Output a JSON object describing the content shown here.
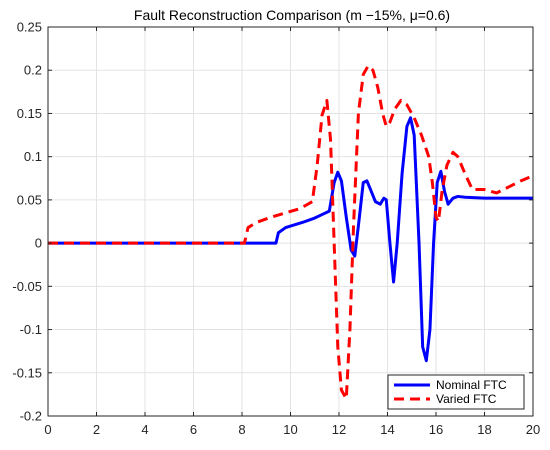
{
  "chart_data": {
    "type": "line",
    "title": "Fault Reconstruction Comparison (m −15%, μ=0.6)",
    "xlabel": "",
    "ylabel": "",
    "xlim": [
      0,
      20
    ],
    "ylim": [
      -0.2,
      0.25
    ],
    "xticks": [
      0,
      2,
      4,
      6,
      8,
      10,
      12,
      14,
      16,
      18,
      20
    ],
    "yticks": [
      -0.2,
      -0.15,
      -0.1,
      -0.05,
      0,
      0.05,
      0.1,
      0.15,
      0.2,
      0.25
    ],
    "xtick_labels": [
      "0",
      "2",
      "4",
      "6",
      "8",
      "10",
      "12",
      "14",
      "16",
      "18",
      "20"
    ],
    "ytick_labels": [
      "-0.2",
      "-0.15",
      "-0.1",
      "-0.05",
      "0",
      "0.05",
      "0.1",
      "0.15",
      "0.2",
      "0.25"
    ],
    "grid": true,
    "legend_position": "bottom-right",
    "series": [
      {
        "name": "Nominal FTC",
        "color": "#0000ff",
        "style": "solid",
        "points": [
          [
            0,
            0
          ],
          [
            9.4,
            0
          ],
          [
            9.5,
            0.012
          ],
          [
            9.8,
            0.018
          ],
          [
            10.5,
            0.024
          ],
          [
            11.0,
            0.029
          ],
          [
            11.3,
            0.033
          ],
          [
            11.6,
            0.037
          ],
          [
            11.8,
            0.07
          ],
          [
            11.95,
            0.082
          ],
          [
            12.1,
            0.072
          ],
          [
            12.3,
            0.03
          ],
          [
            12.5,
            -0.008
          ],
          [
            12.65,
            -0.015
          ],
          [
            12.8,
            0.02
          ],
          [
            13.0,
            0.07
          ],
          [
            13.15,
            0.072
          ],
          [
            13.3,
            0.062
          ],
          [
            13.5,
            0.048
          ],
          [
            13.7,
            0.045
          ],
          [
            13.85,
            0.052
          ],
          [
            13.95,
            0.05
          ],
          [
            14.1,
            0.0
          ],
          [
            14.25,
            -0.045
          ],
          [
            14.4,
            0.0
          ],
          [
            14.6,
            0.08
          ],
          [
            14.8,
            0.135
          ],
          [
            14.95,
            0.145
          ],
          [
            15.1,
            0.125
          ],
          [
            15.3,
            0.0
          ],
          [
            15.45,
            -0.12
          ],
          [
            15.6,
            -0.136
          ],
          [
            15.75,
            -0.1
          ],
          [
            15.9,
            0.0
          ],
          [
            16.05,
            0.07
          ],
          [
            16.2,
            0.083
          ],
          [
            16.35,
            0.06
          ],
          [
            16.5,
            0.045
          ],
          [
            16.7,
            0.052
          ],
          [
            16.9,
            0.054
          ],
          [
            17.2,
            0.053
          ],
          [
            18,
            0.052
          ],
          [
            20,
            0.052
          ]
        ]
      },
      {
        "name": "Varied FTC",
        "color": "#ff0000",
        "style": "dashed",
        "points": [
          [
            0,
            0
          ],
          [
            8.1,
            0
          ],
          [
            8.25,
            0.018
          ],
          [
            8.6,
            0.024
          ],
          [
            9.2,
            0.03
          ],
          [
            9.8,
            0.035
          ],
          [
            10.4,
            0.04
          ],
          [
            10.9,
            0.048
          ],
          [
            11.1,
            0.09
          ],
          [
            11.3,
            0.148
          ],
          [
            11.5,
            0.165
          ],
          [
            11.65,
            0.12
          ],
          [
            11.8,
            0.0
          ],
          [
            11.95,
            -0.12
          ],
          [
            12.1,
            -0.17
          ],
          [
            12.3,
            -0.18
          ],
          [
            12.45,
            -0.1
          ],
          [
            12.6,
            0.02
          ],
          [
            12.8,
            0.15
          ],
          [
            13.0,
            0.195
          ],
          [
            13.2,
            0.205
          ],
          [
            13.4,
            0.2
          ],
          [
            13.6,
            0.18
          ],
          [
            13.8,
            0.15
          ],
          [
            13.95,
            0.135
          ],
          [
            14.1,
            0.14
          ],
          [
            14.3,
            0.155
          ],
          [
            14.55,
            0.165
          ],
          [
            14.8,
            0.16
          ],
          [
            15.1,
            0.145
          ],
          [
            15.4,
            0.125
          ],
          [
            15.7,
            0.1
          ],
          [
            15.85,
            0.07
          ],
          [
            16.0,
            0.03
          ],
          [
            16.1,
            0.025
          ],
          [
            16.25,
            0.06
          ],
          [
            16.45,
            0.09
          ],
          [
            16.7,
            0.105
          ],
          [
            16.9,
            0.1
          ],
          [
            17.2,
            0.08
          ],
          [
            17.5,
            0.062
          ],
          [
            18.0,
            0.062
          ],
          [
            18.5,
            0.058
          ],
          [
            19.0,
            0.065
          ],
          [
            19.5,
            0.072
          ],
          [
            20,
            0.078
          ]
        ]
      }
    ]
  }
}
